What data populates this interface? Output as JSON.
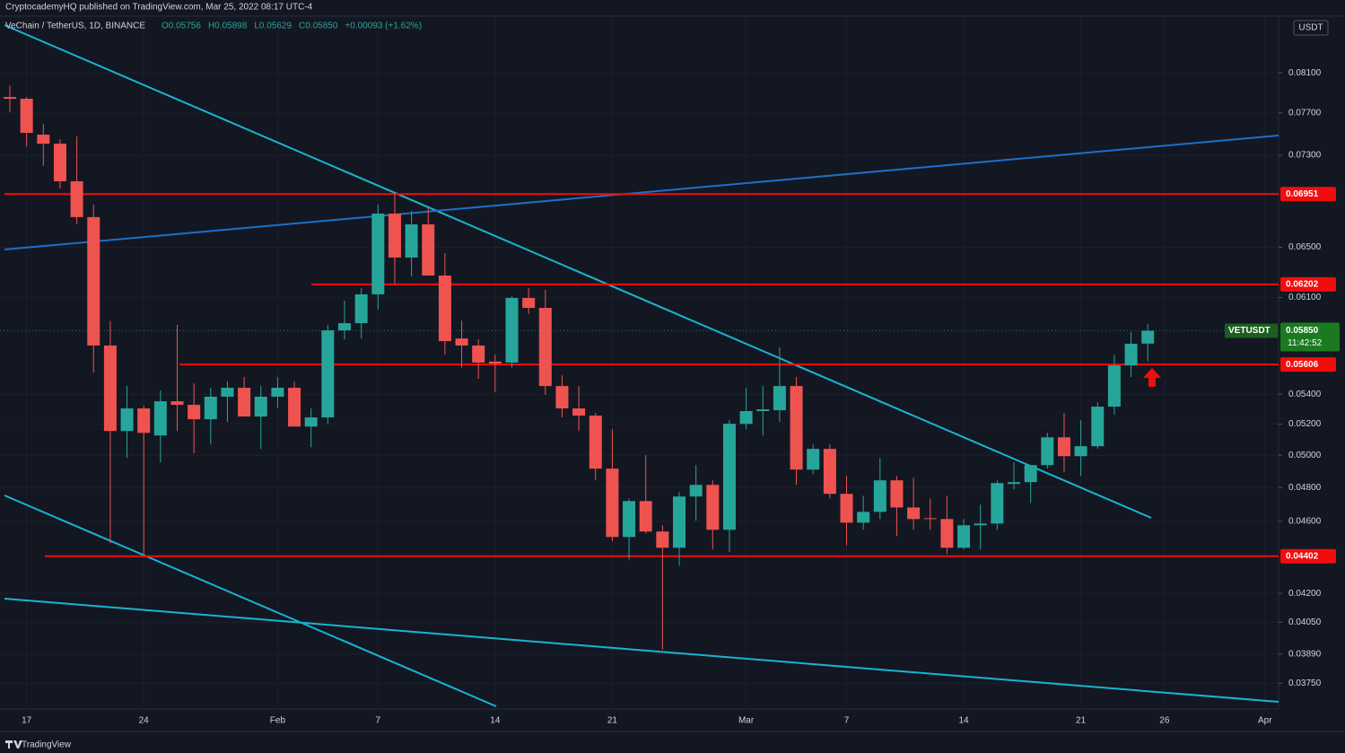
{
  "header": {
    "publisher": "CryptocademyHQ published on TradingView.com, Mar 25, 2022 08:17 UTC-4"
  },
  "chart_data": {
    "type": "candlestick",
    "title": "VeChain / TetherUS, 1D, BINANCE",
    "ohlc_legend": [
      "O0.05756",
      "H0.05898",
      "L0.05629",
      "C0.05850",
      "+0.00093 (+1.62%)"
    ],
    "currency": "USDT",
    "symbol": "VETUSDT",
    "countdown": "11:42:52",
    "last": {
      "value": 0.0585,
      "label": "0.05850"
    },
    "categories": [
      null,
      "17",
      null,
      null,
      null,
      null,
      null,
      null,
      "24",
      null,
      null,
      null,
      null,
      null,
      null,
      null,
      "Feb",
      null,
      null,
      null,
      null,
      null,
      "7",
      null,
      null,
      null,
      null,
      null,
      null,
      "14",
      null,
      null,
      null,
      null,
      null,
      null,
      "21",
      null,
      null,
      null,
      null,
      null,
      null,
      null,
      "Mar",
      null,
      null,
      null,
      null,
      null,
      "7",
      null,
      null,
      null,
      null,
      null,
      null,
      "14",
      null,
      null,
      null,
      null,
      null,
      null,
      "21",
      null,
      null,
      null,
      null,
      "26",
      null,
      null,
      null,
      null,
      null,
      "Apr"
    ],
    "open": [
      0.07856,
      0.07839,
      0.07492,
      0.07407,
      0.07064,
      0.06752,
      0.05742,
      0.05155,
      0.05304,
      0.05126,
      0.05352,
      0.05328,
      0.05232,
      0.05383,
      0.05444,
      0.0525,
      0.05383,
      0.05444,
      0.05184,
      0.05244,
      0.05853,
      0.05906,
      0.06125,
      0.06782,
      0.06416,
      0.0669,
      0.06272,
      0.05793,
      0.05742,
      0.05627,
      0.0562,
      0.06097,
      0.06021,
      0.05456,
      0.05304,
      0.05256,
      0.04916,
      0.0451,
      0.04719,
      0.04541,
      0.04449,
      0.04746,
      0.04816,
      0.04551,
      0.05202,
      0.05286,
      0.05292,
      0.05456,
      0.0491,
      0.0504,
      0.04762,
      0.04592,
      0.04655,
      0.04844,
      0.04681,
      0.04618,
      0.04613,
      0.04449,
      0.04577,
      0.04587,
      0.04822,
      0.04833,
      0.04938,
      0.05114,
      0.04994,
      0.05057,
      0.05316,
      0.056,
      0.05756,
      null,
      null,
      null,
      null,
      null,
      null,
      null
    ],
    "high": [
      0.07972,
      0.07856,
      0.07594,
      0.07449,
      0.07475,
      0.0686,
      0.05922,
      0.05456,
      0.05322,
      0.05425,
      0.05893,
      0.05474,
      0.05444,
      0.05487,
      0.05518,
      0.05456,
      0.05518,
      0.05487,
      0.05304,
      0.05893,
      0.06076,
      0.06173,
      0.0686,
      0.06965,
      0.06805,
      0.06829,
      0.06452,
      0.05925,
      0.05787,
      0.05677,
      0.06111,
      0.06173,
      0.0616,
      0.0553,
      0.05456,
      0.05274,
      0.05167,
      0.04735,
      0.05,
      0.04577,
      0.04772,
      0.04938,
      0.04844,
      0.05226,
      0.05444,
      0.05456,
      0.05728,
      0.05518,
      0.05068,
      0.05068,
      0.04871,
      0.04751,
      0.04983,
      0.04871,
      0.0486,
      0.04735,
      0.04751,
      0.04613,
      0.04698,
      0.04844,
      0.04955,
      0.04938,
      0.05143,
      0.05274,
      0.05226,
      0.05346,
      0.05677,
      0.0584,
      0.05898,
      null,
      null,
      null,
      null,
      null,
      null,
      null
    ],
    "low": [
      0.0771,
      0.07382,
      0.07202,
      0.07,
      0.0669,
      0.05549,
      0.04474,
      0.04983,
      0.04406,
      0.04955,
      0.05155,
      0.05012,
      0.05068,
      0.05214,
      0.0525,
      0.0504,
      0.05304,
      0.05184,
      0.05051,
      0.05202,
      0.05787,
      0.05793,
      0.06008,
      0.06209,
      0.06265,
      0.06272,
      0.05677,
      0.05584,
      0.05506,
      0.05414,
      0.05584,
      0.05974,
      0.05395,
      0.05244,
      0.05155,
      0.04844,
      0.04485,
      0.04383,
      0.0453,
      0.03912,
      0.04349,
      0.04603,
      0.04439,
      0.04424,
      0.05167,
      0.05126,
      0.05214,
      0.04816,
      0.04882,
      0.04735,
      0.04464,
      0.04551,
      0.04613,
      0.04515,
      0.04551,
      0.04551,
      0.04414,
      0.04439,
      0.04439,
      0.04551,
      0.04789,
      0.04708,
      0.04916,
      0.04894,
      0.04871,
      0.0504,
      0.05262,
      0.05518,
      0.05629,
      null,
      null,
      null,
      null,
      null,
      null,
      null
    ],
    "close": [
      0.07839,
      0.07509,
      0.07407,
      0.07064,
      0.06752,
      0.05742,
      0.05155,
      0.05304,
      0.05143,
      0.05352,
      0.05328,
      0.05232,
      0.05383,
      0.05444,
      0.0525,
      0.05383,
      0.05444,
      0.05184,
      0.05244,
      0.05853,
      0.05906,
      0.06125,
      0.06782,
      0.06416,
      0.0669,
      0.06272,
      0.05774,
      0.05742,
      0.0562,
      0.05613,
      0.06097,
      0.06021,
      0.05456,
      0.05304,
      0.05256,
      0.04916,
      0.0451,
      0.04719,
      0.04541,
      0.04449,
      0.04746,
      0.04816,
      0.04551,
      0.05202,
      0.05286,
      0.05298,
      0.05456,
      0.0491,
      0.0504,
      0.04762,
      0.04592,
      0.04655,
      0.04844,
      0.04681,
      0.04613,
      0.04613,
      0.04449,
      0.04577,
      0.04587,
      0.04827,
      0.04833,
      0.04938,
      0.05114,
      0.04994,
      0.05057,
      0.05316,
      0.056,
      0.05755,
      0.0585,
      null,
      null,
      null,
      null,
      null,
      null,
      null
    ],
    "up_color": "#26a69a",
    "down_color": "#ef5350",
    "level_color": "#f20d0d",
    "log_scale": true,
    "grid": true,
    "ylim": [
      0.0363,
      0.087
    ],
    "yticks": [
      {
        "value": 0.081,
        "label": "0.08100"
      },
      {
        "value": 0.077,
        "label": "0.07700"
      },
      {
        "value": 0.073,
        "label": "0.07300"
      },
      {
        "value": 0.065,
        "label": "0.06500"
      },
      {
        "value": 0.061,
        "label": "0.06100"
      },
      {
        "value": 0.054,
        "label": "0.05400"
      },
      {
        "value": 0.052,
        "label": "0.05200"
      },
      {
        "value": 0.05,
        "label": "0.05000"
      },
      {
        "value": 0.048,
        "label": "0.04800"
      },
      {
        "value": 0.046,
        "label": "0.04600"
      },
      {
        "value": 0.042,
        "label": "0.04200"
      },
      {
        "value": 0.0405,
        "label": "0.04050"
      },
      {
        "value": 0.0389,
        "label": "0.03890"
      },
      {
        "value": 0.0375,
        "label": "0.03750"
      }
    ],
    "levels": [
      0.06951,
      0.06202,
      0.05606,
      0.04402
    ]
  },
  "footer": {
    "brand": "TradingView"
  }
}
